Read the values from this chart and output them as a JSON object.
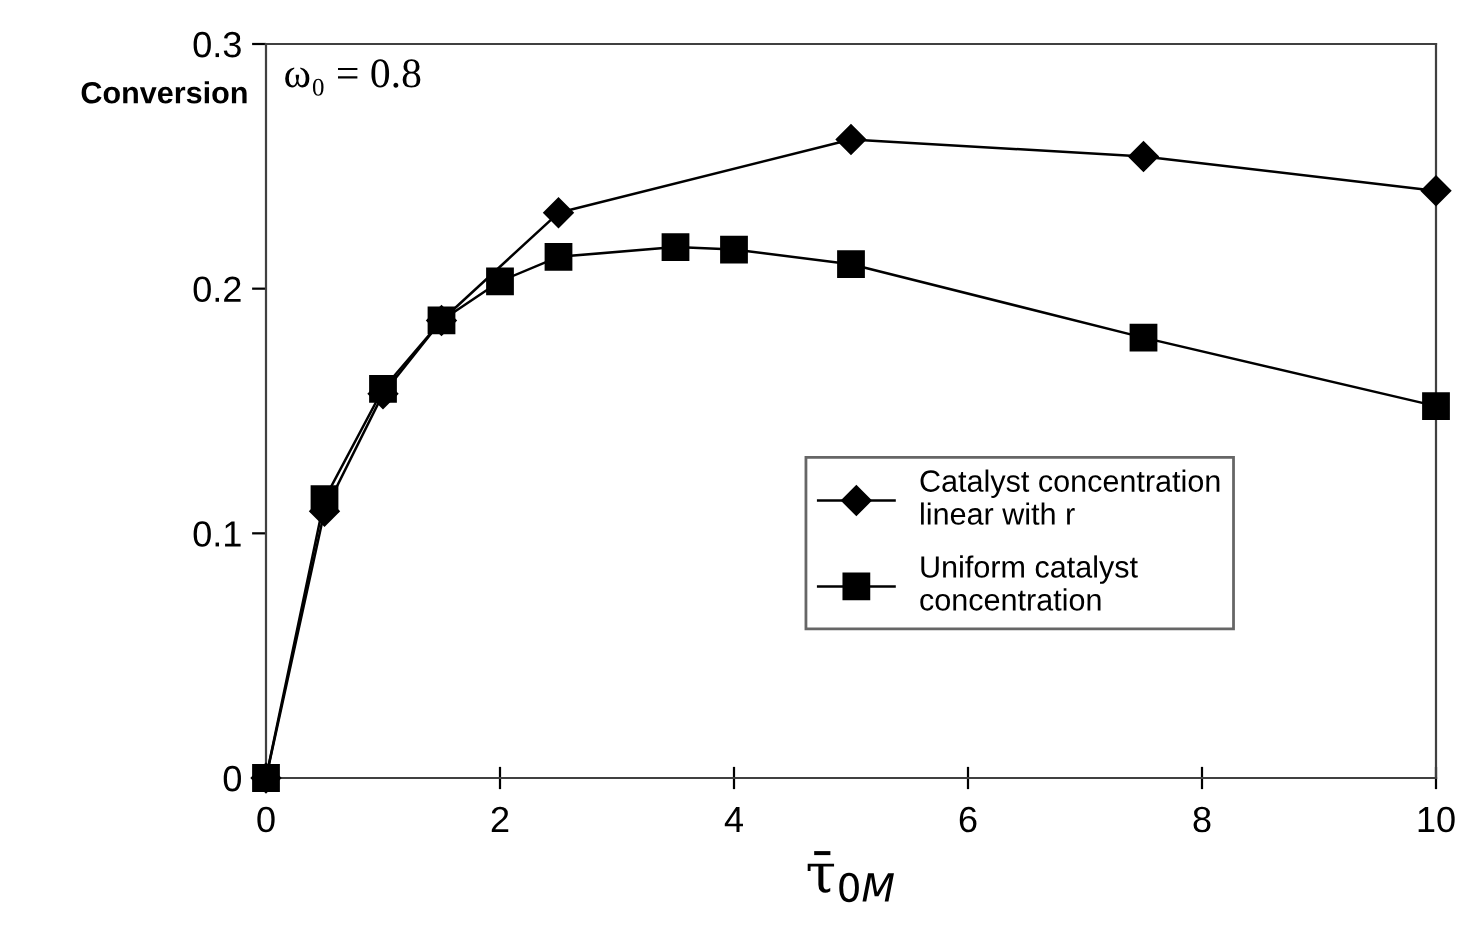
{
  "chart_data": {
    "type": "line",
    "ylabel": "Conversion",
    "xlabel": "τ̄$_{0M}$",
    "annotations": [
      "ω₀ = 0.8"
    ],
    "xlim": [
      0,
      10
    ],
    "xticks": [
      0,
      2,
      4,
      6,
      8,
      10
    ],
    "ylim": [
      0,
      0.3
    ],
    "yticks": [
      0,
      0.1,
      0.2,
      0.3
    ],
    "grid": false,
    "legend": "right",
    "line_style": "solid",
    "series": [
      {
        "name": "Catalyst concentration\nlinear with r",
        "color": "#000000",
        "marker": "diamond",
        "x": [
          0,
          0.5,
          1,
          1.5,
          2.5,
          5,
          7.5,
          10
        ],
        "values": [
          0,
          0.109,
          0.157,
          0.187,
          0.231,
          0.261,
          0.254,
          0.24
        ]
      },
      {
        "name": "Uniform catalyst\nconcentration",
        "color": "#000000",
        "marker": "square",
        "x": [
          0,
          0.5,
          1,
          1.5,
          2,
          2.5,
          3.5,
          4,
          5,
          7.5,
          10
        ],
        "values": [
          0,
          0.114,
          0.159,
          0.187,
          0.203,
          0.213,
          0.217,
          0.216,
          0.21,
          0.18,
          0.152
        ]
      }
    ]
  }
}
